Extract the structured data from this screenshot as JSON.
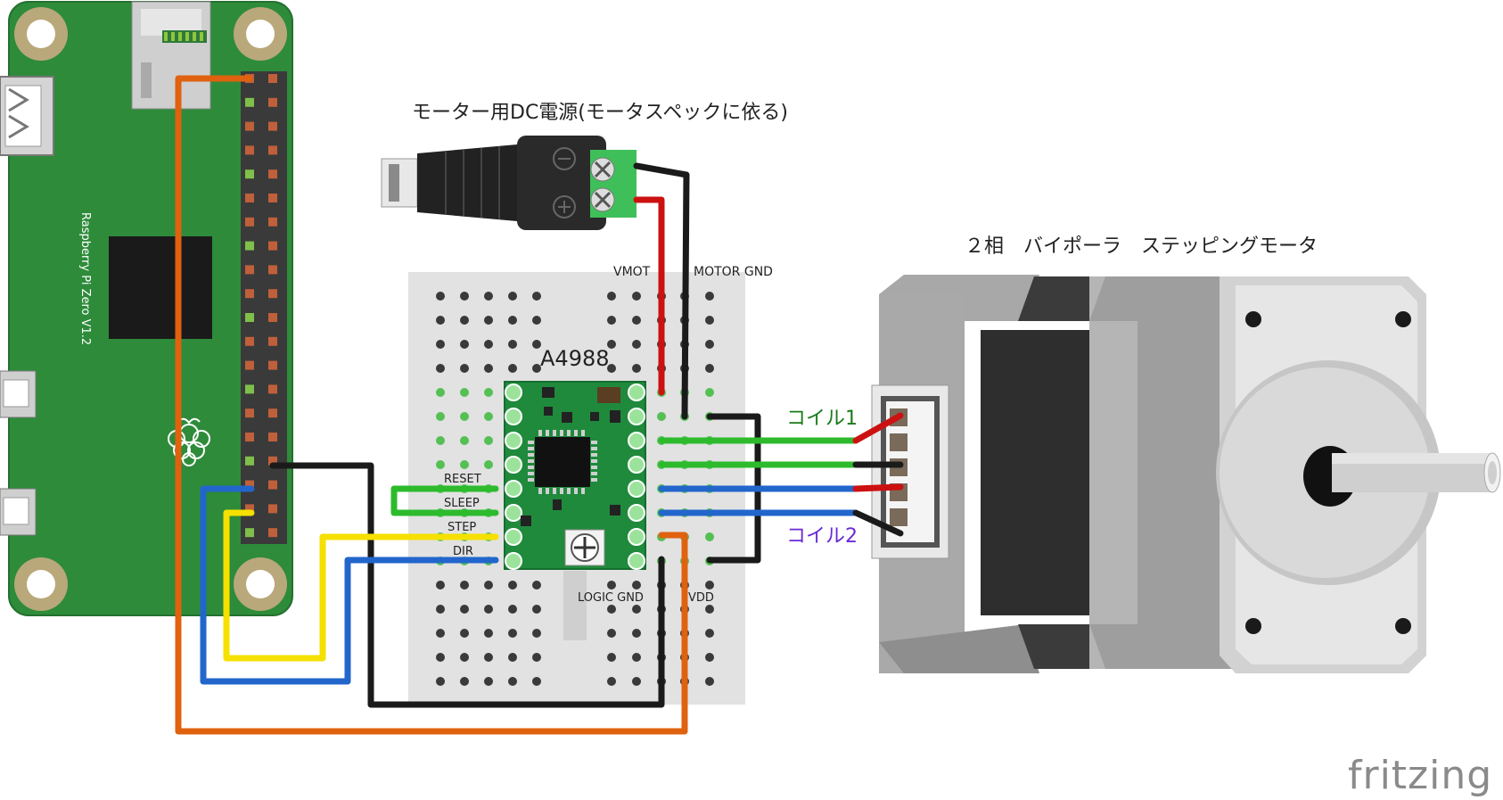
{
  "title_power": "モーター用DC電源(モータスペックに依る)",
  "title_motor": "２相　バイポーラ　ステッピングモータ",
  "board_label": "Raspberry Pi Zero V1.2",
  "driver_label": "A4988",
  "pin_labels": {
    "vmot": "VMOT",
    "motor_gnd": "MOTOR GND",
    "reset": "RESET",
    "sleep": "SLEEP",
    "step": "STEP",
    "dir": "DIR",
    "logic_gnd": "LOGIC GND",
    "vdd": "VDD"
  },
  "coil1": "コイル1",
  "coil2": "コイル2",
  "logo": "fritzing",
  "colors": {
    "pcb_green": "#2e8b3a",
    "wire_orange": "#e0620f",
    "wire_black": "#1a1a1a",
    "wire_red": "#cc1111",
    "wire_green": "#2dbb2d",
    "wire_blue": "#2266cc",
    "wire_yellow": "#f5e000",
    "coil1_text": "#1a7a1a",
    "coil2_text": "#6a2ad6"
  }
}
